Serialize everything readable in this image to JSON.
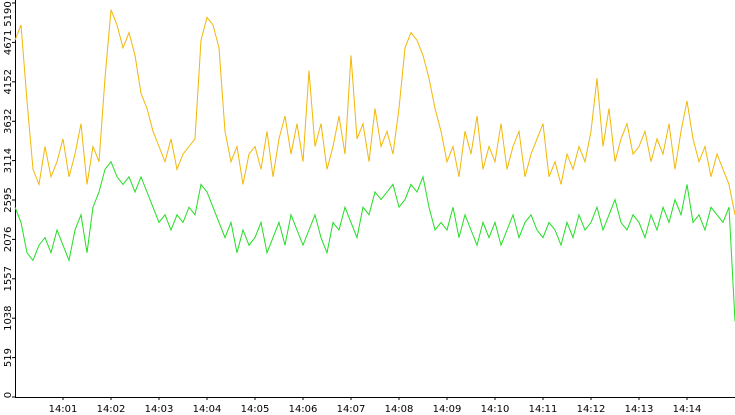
{
  "chart_data": {
    "type": "line",
    "categories": [
      null,
      null,
      null,
      null,
      null,
      null,
      null,
      null,
      "14:01",
      null,
      null,
      null,
      null,
      null,
      null,
      null,
      "14:02",
      null,
      null,
      null,
      null,
      null,
      null,
      null,
      "14:03",
      null,
      null,
      null,
      null,
      null,
      null,
      null,
      "14:04",
      null,
      null,
      null,
      null,
      null,
      null,
      null,
      "14:05",
      null,
      null,
      null,
      null,
      null,
      null,
      null,
      "14:06",
      null,
      null,
      null,
      null,
      null,
      null,
      null,
      "14:07",
      null,
      null,
      null,
      null,
      null,
      null,
      null,
      "14:08",
      null,
      null,
      null,
      null,
      null,
      null,
      null,
      "14:09",
      null,
      null,
      null,
      null,
      null,
      null,
      null,
      "14:10",
      null,
      null,
      null,
      null,
      null,
      null,
      null,
      "14:11",
      null,
      null,
      null,
      null,
      null,
      null,
      null,
      "14:12",
      null,
      null,
      null,
      null,
      null,
      null,
      null,
      "14:13",
      null,
      null,
      null,
      null,
      null,
      null,
      null,
      "14:14",
      null,
      null,
      null,
      null,
      null,
      null,
      null,
      null
    ],
    "series": [
      {
        "color": "#f2b705",
        "values": [
          4700,
          4900,
          3900,
          3000,
          2800,
          3300,
          2900,
          3100,
          3400,
          2900,
          3200,
          3600,
          2800,
          3300,
          3100,
          4200,
          5100,
          4900,
          4600,
          4800,
          4500,
          4000,
          3800,
          3500,
          3300,
          3100,
          3400,
          3000,
          3200,
          3300,
          3400,
          4700,
          5000,
          4900,
          4600,
          3500,
          3100,
          3300,
          2800,
          3200,
          3300,
          3000,
          3500,
          2900,
          3400,
          3700,
          3200,
          3600,
          3100,
          4300,
          3300,
          3600,
          3000,
          3300,
          3700,
          3200,
          4500,
          3400,
          3600,
          3100,
          3800,
          3300,
          3500,
          3200,
          3800,
          4600,
          4800,
          4700,
          4500,
          4200,
          3800,
          3500,
          3100,
          3300,
          2900,
          3500,
          3200,
          3700,
          3000,
          3300,
          3100,
          3600,
          3000,
          3300,
          3500,
          2900,
          3200,
          3400,
          3600,
          2900,
          3100,
          2800,
          3200,
          3000,
          3300,
          3100,
          3500,
          4200,
          3300,
          3800,
          3100,
          3400,
          3600,
          3200,
          3300,
          3500,
          3100,
          3400,
          3200,
          3600,
          3000,
          3500,
          3900,
          3400,
          3100,
          3300,
          2900,
          3200,
          3000,
          2800,
          2400
        ]
      },
      {
        "color": "#22dd22",
        "values": [
          2500,
          2300,
          1900,
          1800,
          2000,
          2100,
          1900,
          2200,
          2000,
          1800,
          2200,
          2400,
          1900,
          2500,
          2700,
          3000,
          3100,
          2900,
          2800,
          2900,
          2700,
          2900,
          2700,
          2500,
          2300,
          2400,
          2200,
          2400,
          2300,
          2500,
          2400,
          2800,
          2700,
          2500,
          2300,
          2100,
          2300,
          1900,
          2200,
          2000,
          2100,
          2300,
          1900,
          2100,
          2300,
          2000,
          2400,
          2200,
          2000,
          2200,
          2400,
          2100,
          1900,
          2300,
          2200,
          2500,
          2300,
          2100,
          2500,
          2400,
          2700,
          2600,
          2700,
          2800,
          2500,
          2600,
          2800,
          2700,
          2900,
          2500,
          2200,
          2300,
          2200,
          2500,
          2100,
          2400,
          2200,
          2000,
          2300,
          2100,
          2300,
          2000,
          2200,
          2400,
          2100,
          2300,
          2400,
          2200,
          2100,
          2300,
          2200,
          2000,
          2300,
          2100,
          2400,
          2200,
          2300,
          2500,
          2200,
          2400,
          2600,
          2300,
          2200,
          2400,
          2300,
          2100,
          2400,
          2200,
          2500,
          2300,
          2600,
          2400,
          2800,
          2300,
          2400,
          2200,
          2500,
          2400,
          2300,
          2500,
          1000
        ]
      }
    ],
    "ylim": [
      0,
      5190
    ],
    "yticks": [
      0,
      519,
      1038,
      1557,
      2076,
      2595,
      3114,
      3632,
      4152,
      4671,
      5190
    ]
  }
}
